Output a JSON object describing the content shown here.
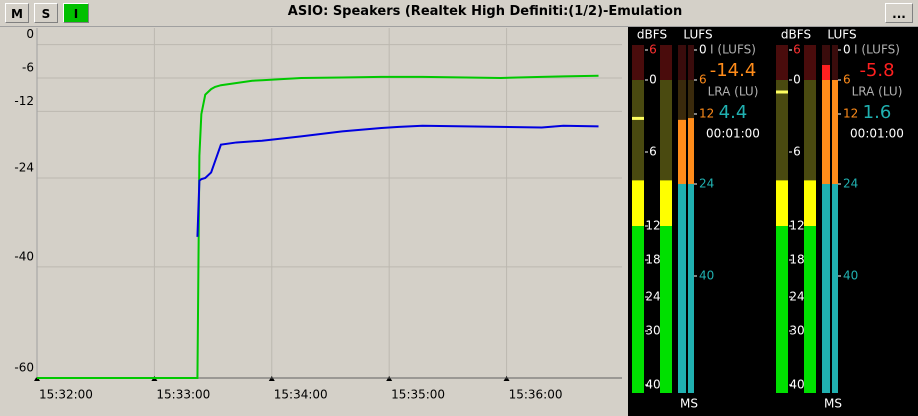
{
  "toolbar": {
    "buttons": [
      "M",
      "S",
      "I"
    ],
    "title": "ASIO: Speakers (Realtek High Definiti:(1/2)-Emulation",
    "menu": "..."
  },
  "chart_data": {
    "type": "line",
    "x": [
      55920,
      56002,
      56003,
      56004,
      56006,
      56009,
      56011,
      56014,
      56022,
      56030,
      56035,
      56055,
      56076,
      56096,
      56105,
      56117,
      56157,
      56178,
      56189,
      56207
    ],
    "series": [
      {
        "color": "#00c800",
        "values": [
          -60,
          -60,
          -20,
          -12.5,
          -9,
          -8,
          -7.6,
          -7.3,
          -6.9,
          -6.5,
          -6.4,
          -6,
          -5.9,
          -5.8,
          -5.8,
          -5.8,
          -6,
          -5.8,
          -5.7,
          -5.6
        ]
      },
      {
        "color": "#0000e0",
        "values": [
          null,
          -34.6,
          -24.5,
          -24.2,
          -24,
          -23,
          -21,
          -18,
          -17.6,
          -17.4,
          -17.3,
          -16.5,
          -15.6,
          -15,
          -14.8,
          -14.6,
          -14.8,
          -14.9,
          -14.6,
          -14.7
        ]
      }
    ],
    "xlim": [
      55920,
      56219
    ],
    "xticks": [
      {
        "value": 55920,
        "label": "15:32:00"
      },
      {
        "value": 55980,
        "label": "15:33:00"
      },
      {
        "value": 56040,
        "label": "15:34:00"
      },
      {
        "value": 56100,
        "label": "15:35:00"
      },
      {
        "value": 56160,
        "label": "15:36:00"
      }
    ],
    "ylim": [
      -60,
      3
    ],
    "yticks": [
      0,
      -6,
      -12,
      -24,
      -40,
      -60
    ],
    "grid": true
  },
  "meters": [
    {
      "dbfs_title": "dBFS",
      "lufs_title": "LUFS",
      "dbfs_scale": [
        6,
        0,
        {
          "value": -6,
          "label": "6"
        },
        {
          "value": -12,
          "label": "12"
        },
        {
          "value": -18,
          "label": "18"
        },
        {
          "value": -24,
          "label": "24"
        },
        {
          "value": -30,
          "label": "30"
        },
        {
          "value": -40,
          "label": "40"
        }
      ],
      "lufs_scale": [
        0,
        {
          "value": -6,
          "label": "6"
        },
        {
          "value": -12,
          "label": "12"
        },
        {
          "value": -24,
          "label": "24"
        },
        {
          "value": -40,
          "label": "40"
        }
      ],
      "dbfs_levels": [
        -8.3,
        -8.3
      ],
      "dbfs_peak": -3.2,
      "lufs_levels": [
        -13,
        -12.7
      ],
      "integrated_label": "I (LUFS)",
      "integrated": -14.4,
      "integrated_color": "#ff8c1a",
      "lra_label": "LRA (LU)",
      "lra": 4.4,
      "duration": "00:01:00",
      "mode": "MS"
    },
    {
      "dbfs_title": "dBFS",
      "lufs_title": "LUFS",
      "dbfs_scale": [
        6,
        0,
        {
          "value": -6,
          "label": "6"
        },
        {
          "value": -12,
          "label": "12"
        },
        {
          "value": -18,
          "label": "18"
        },
        {
          "value": -24,
          "label": "24"
        },
        {
          "value": -30,
          "label": "30"
        },
        {
          "value": -40,
          "label": "40"
        }
      ],
      "lufs_scale": [
        0,
        {
          "value": -6,
          "label": "6"
        },
        {
          "value": -12,
          "label": "12"
        },
        {
          "value": -24,
          "label": "24"
        },
        {
          "value": -40,
          "label": "40"
        }
      ],
      "dbfs_levels": [
        -8.3,
        -8.3
      ],
      "dbfs_peak": -1,
      "lufs_levels": [
        -3,
        -6
      ],
      "integrated_label": "I (LUFS)",
      "integrated": -5.8,
      "integrated_color": "#ff2020",
      "lra_label": "LRA (LU)",
      "lra": 1.6,
      "duration": "00:01:00",
      "mode": "MS"
    }
  ]
}
